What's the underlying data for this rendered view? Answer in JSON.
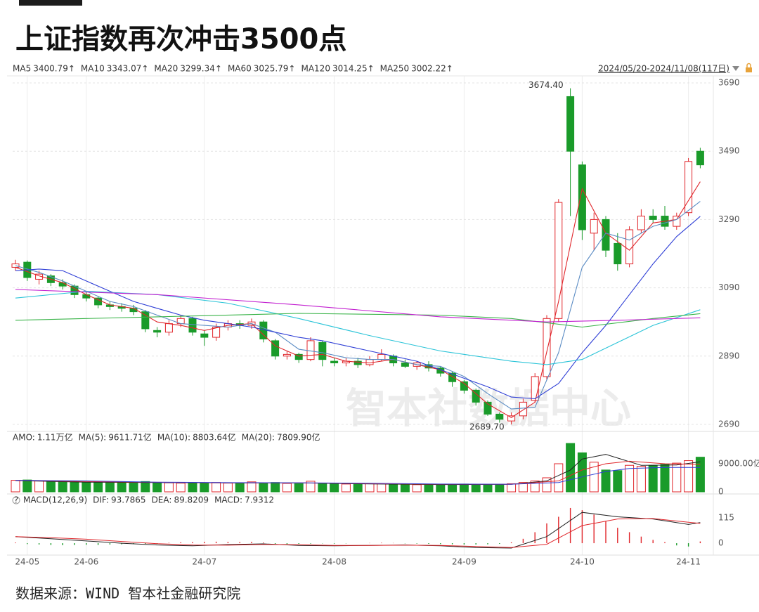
{
  "header": {
    "title": "上证指数再次冲击3500点"
  },
  "watermark": "智本社数据中心",
  "source": "数据来源：WIND 智本社金融研究院",
  "chart_data": [
    {
      "type": "candlestick",
      "date_range": "2024/05/20-2024/11/08(117日)",
      "up_color": "#e0262b",
      "down_color": "#1a9b2a",
      "open": [
        3150,
        3165,
        3115,
        3125,
        3105,
        3095,
        3070,
        3060,
        3040,
        3035,
        3030,
        3020,
        2965,
        2960,
        2985,
        3000,
        2955,
        2945,
        2975,
        2985,
        2980,
        2990,
        2935,
        2890,
        2895,
        2880,
        2930,
        2875,
        2870,
        2875,
        2865,
        2880,
        2890,
        2870,
        2860,
        2865,
        2855,
        2840,
        2815,
        2790,
        2755,
        2720,
        2700,
        2715,
        2760,
        2830,
        3000,
        3650,
        3450,
        3250,
        3290,
        3220,
        3160,
        3260,
        3300,
        3300,
        3270,
        3310,
        3490
      ],
      "close": [
        3160,
        3120,
        3130,
        3105,
        3095,
        3070,
        3060,
        3040,
        3035,
        3030,
        3020,
        2970,
        2960,
        2985,
        3000,
        2960,
        2945,
        2975,
        2985,
        2980,
        2990,
        2940,
        2890,
        2895,
        2880,
        2935,
        2880,
        2870,
        2875,
        2865,
        2880,
        2895,
        2870,
        2860,
        2870,
        2855,
        2840,
        2815,
        2790,
        2755,
        2720,
        2705,
        2715,
        2755,
        2830,
        3000,
        3340,
        3490,
        3260,
        3290,
        3200,
        3160,
        3260,
        3300,
        3290,
        3270,
        3300,
        3460,
        3450
      ],
      "high": [
        3172,
        3170,
        3140,
        3130,
        3115,
        3100,
        3080,
        3065,
        3050,
        3045,
        3040,
        3025,
        2975,
        2995,
        3010,
        3005,
        2965,
        2985,
        2995,
        2995,
        3000,
        2995,
        2940,
        2905,
        2900,
        2945,
        2935,
        2885,
        2885,
        2885,
        2890,
        2910,
        2895,
        2880,
        2875,
        2875,
        2860,
        2845,
        2820,
        2795,
        2760,
        2725,
        2725,
        2765,
        2840,
        3010,
        3350,
        3674.4,
        3460,
        3310,
        3300,
        3250,
        3270,
        3320,
        3320,
        3330,
        3310,
        3470,
        3500
      ],
      "low": [
        3140,
        3110,
        3100,
        3095,
        3085,
        3060,
        3050,
        3030,
        3025,
        3020,
        3010,
        2960,
        2945,
        2950,
        2975,
        2950,
        2920,
        2935,
        2965,
        2970,
        2970,
        2930,
        2880,
        2880,
        2870,
        2875,
        2860,
        2860,
        2860,
        2855,
        2860,
        2875,
        2860,
        2855,
        2850,
        2845,
        2830,
        2800,
        2780,
        2745,
        2715,
        2695,
        2689.7,
        2705,
        2755,
        2820,
        2990,
        3300,
        3230,
        3200,
        3180,
        3140,
        3150,
        3250,
        3280,
        3260,
        3260,
        3300,
        3440
      ],
      "ylim": [
        2670,
        3710
      ],
      "yticks": [
        2690,
        2890,
        3090,
        3290,
        3490,
        3690
      ],
      "grid": true,
      "annotations": [
        {
          "label": "3674.40",
          "value": 3674.4,
          "color": "#e0262b"
        },
        {
          "label": "2689.70",
          "value": 2689.7,
          "color": "#1a9b2a"
        }
      ],
      "series": [
        {
          "name": "MA5",
          "color": "#e0262b",
          "legend_label": "3400.79↑",
          "x": [
            0,
            2,
            4,
            6,
            8,
            10,
            12,
            14,
            16,
            18,
            20,
            22,
            24,
            26,
            28,
            30,
            32,
            34,
            36,
            38,
            40,
            42,
            44,
            46,
            48,
            50,
            52,
            54,
            56,
            58
          ],
          "values": [
            3150,
            3125,
            3105,
            3070,
            3040,
            3030,
            2990,
            2980,
            2965,
            2980,
            2985,
            2920,
            2890,
            2895,
            2875,
            2870,
            2880,
            2865,
            2850,
            2810,
            2750,
            2710,
            2755,
            3050,
            3380,
            3250,
            3200,
            3280,
            3290,
            3400.79
          ]
        },
        {
          "name": "MA10",
          "color": "#5b8cc4",
          "legend_label": "3343.07↑",
          "x": [
            0,
            2,
            4,
            6,
            8,
            10,
            12,
            14,
            16,
            18,
            20,
            22,
            24,
            26,
            28,
            30,
            32,
            34,
            36,
            38,
            40,
            42,
            44,
            46,
            48,
            50,
            52,
            54,
            56,
            58
          ],
          "values": [
            3155,
            3135,
            3110,
            3080,
            3050,
            3035,
            3010,
            2985,
            2980,
            2975,
            2985,
            2960,
            2910,
            2900,
            2885,
            2880,
            2880,
            2865,
            2860,
            2830,
            2780,
            2735,
            2740,
            2900,
            3150,
            3250,
            3230,
            3270,
            3290,
            3343.07
          ]
        },
        {
          "name": "MA20",
          "color": "#2f3fd6",
          "legend_label": "3299.34↑",
          "x": [
            0,
            2,
            4,
            6,
            8,
            10,
            12,
            14,
            16,
            18,
            20,
            22,
            24,
            26,
            28,
            30,
            32,
            34,
            36,
            38,
            40,
            42,
            44,
            46,
            48,
            50,
            52,
            54,
            56,
            58
          ],
          "values": [
            3140,
            3145,
            3140,
            3110,
            3080,
            3050,
            3030,
            3010,
            2995,
            2985,
            2975,
            2960,
            2945,
            2935,
            2920,
            2905,
            2890,
            2875,
            2850,
            2825,
            2800,
            2770,
            2765,
            2810,
            2900,
            2980,
            3070,
            3160,
            3240,
            3299.34
          ]
        },
        {
          "name": "MA60",
          "color": "#2bc4d8",
          "legend_label": "3025.79↑",
          "x": [
            0,
            6,
            12,
            18,
            24,
            30,
            36,
            42,
            45,
            48,
            51,
            54,
            58
          ],
          "values": [
            3060,
            3080,
            3070,
            3045,
            3000,
            2950,
            2905,
            2875,
            2865,
            2880,
            2930,
            2980,
            3025.79
          ]
        },
        {
          "name": "MA120",
          "color": "#3bb44a",
          "legend_label": "3014.25↑",
          "x": [
            0,
            12,
            24,
            36,
            42,
            48,
            54,
            58
          ],
          "values": [
            2995,
            3005,
            3015,
            3010,
            3000,
            2975,
            3000,
            3014.25
          ]
        },
        {
          "name": "MA250",
          "color": "#c21fd0",
          "legend_label": "3002.22↑",
          "x": [
            0,
            12,
            24,
            36,
            45,
            51,
            58
          ],
          "values": [
            3085,
            3070,
            3040,
            3005,
            2990,
            2995,
            3002.22
          ]
        }
      ]
    },
    {
      "type": "bar",
      "amo_name": "AMO:",
      "amo_label": "1.11万亿",
      "values": [
        3700,
        3800,
        3500,
        3300,
        3400,
        3200,
        3000,
        3100,
        2900,
        3000,
        2800,
        3300,
        3000,
        2900,
        2800,
        2900,
        2700,
        3000,
        2800,
        2700,
        3200,
        2900,
        3000,
        2700,
        2600,
        3400,
        2800,
        2600,
        2500,
        2400,
        2600,
        2700,
        2500,
        2400,
        2300,
        2400,
        2300,
        2400,
        2500,
        2200,
        2300,
        2400,
        2600,
        3000,
        3500,
        4500,
        9000,
        15500,
        12500,
        9500,
        7000,
        6800,
        8500,
        8200,
        8500,
        8800,
        9200,
        10000,
        11100
      ],
      "ylim": [
        0,
        18000
      ],
      "yticks": [
        0,
        {
          "value": 9000,
          "label": "9000.00亿"
        }
      ],
      "series": [
        {
          "name": "MA(5):",
          "color": "#222222",
          "legend_label": "9611.71亿",
          "x": [
            0,
            6,
            12,
            18,
            24,
            30,
            36,
            42,
            45,
            47,
            48,
            50,
            53,
            56,
            58
          ],
          "values": [
            3600,
            3100,
            3000,
            2850,
            2850,
            2550,
            2350,
            2400,
            3500,
            7000,
            10500,
            12000,
            8500,
            8600,
            9611.71
          ]
        },
        {
          "name": "MA(10):",
          "color": "#e0262b",
          "legend_label": "8803.64亿",
          "x": [
            0,
            6,
            12,
            18,
            24,
            30,
            36,
            42,
            46,
            48,
            50,
            52,
            55,
            58
          ],
          "values": [
            3650,
            3300,
            3050,
            2900,
            2850,
            2650,
            2450,
            2400,
            3500,
            7000,
            9000,
            9800,
            9000,
            8803.64
          ]
        },
        {
          "name": "MA(20):",
          "color": "#2f3fd6",
          "legend_label": "7809.90亿",
          "x": [
            0,
            6,
            12,
            18,
            24,
            30,
            36,
            42,
            46,
            48,
            50,
            52,
            55,
            58
          ],
          "values": [
            3700,
            3500,
            3100,
            2950,
            2900,
            2750,
            2500,
            2450,
            3000,
            4800,
            6500,
            7500,
            7800,
            7809.9
          ]
        }
      ]
    },
    {
      "type": "macd",
      "help": "?",
      "title": "MACD(12,26,9)",
      "hist_name": "MACD:",
      "hist_color_up": "#e0262b",
      "hist_color_down": "#1a9b2a",
      "categories": [
        null,
        "24-05",
        null,
        null,
        null,
        null,
        "24-06",
        null,
        null,
        null,
        null,
        null,
        null,
        null,
        null,
        null,
        "24-07",
        null,
        null,
        null,
        null,
        null,
        null,
        null,
        null,
        null,
        null,
        "24-08",
        null,
        null,
        null,
        null,
        null,
        null,
        null,
        null,
        null,
        null,
        "24-09",
        null,
        null,
        null,
        null,
        null,
        null,
        null,
        null,
        null,
        "24-10",
        null,
        null,
        null,
        null,
        null,
        null,
        null,
        null,
        "24-11",
        null
      ],
      "hist": [
        3,
        -4,
        -6,
        -8,
        -9,
        -8,
        -7,
        -8,
        -6,
        -5,
        -4,
        -3,
        -2,
        2,
        4,
        5,
        6,
        7,
        6,
        5,
        6,
        3,
        -3,
        -4,
        -3,
        -2,
        -1,
        -2,
        -1,
        0,
        1,
        2,
        1,
        -1,
        -2,
        -3,
        -4,
        -5,
        -6,
        -6,
        -5,
        -3,
        4,
        20,
        50,
        90,
        120,
        160,
        150,
        130,
        100,
        70,
        50,
        30,
        15,
        5,
        -10,
        -15,
        7.9312
      ],
      "ylim": [
        -54,
        163
      ],
      "yticks": [
        0,
        115
      ],
      "series": [
        {
          "name": "DIF:",
          "color": "#222222",
          "x": [
            0,
            3,
            6,
            9,
            12,
            15,
            18,
            21,
            24,
            27,
            30,
            33,
            36,
            39,
            42,
            45,
            48,
            51,
            54,
            57,
            58
          ],
          "values": [
            30,
            20,
            10,
            0,
            -8,
            -12,
            -6,
            -3,
            -10,
            -12,
            -10,
            -8,
            -12,
            -20,
            -22,
            30,
            140,
            120,
            110,
            85,
            93.7865
          ]
        },
        {
          "name": "DEA:",
          "color": "#e0262b",
          "x": [
            0,
            3,
            6,
            9,
            12,
            15,
            18,
            21,
            24,
            27,
            30,
            33,
            36,
            39,
            42,
            45,
            48,
            51,
            54,
            57,
            58
          ],
          "values": [
            30,
            25,
            18,
            8,
            -2,
            -8,
            -9,
            -6,
            -7,
            -10,
            -10,
            -9,
            -10,
            -15,
            -20,
            -5,
            80,
            110,
            112,
            95,
            89.8209
          ]
        }
      ]
    }
  ]
}
